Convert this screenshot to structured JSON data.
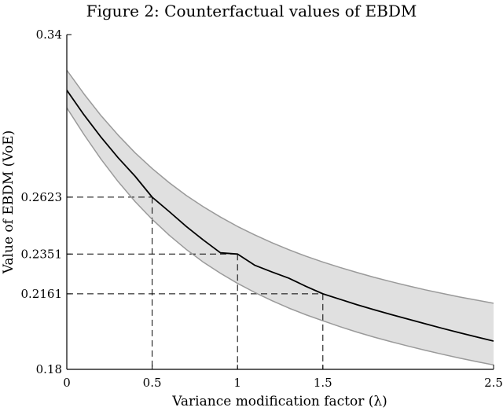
{
  "figure": {
    "title": "Figure 2: Counterfactual values of EBDM"
  },
  "chart_data": {
    "type": "line",
    "title": "Figure 2: Counterfactual values of EBDM",
    "xlabel": "Variance modification factor (λ)",
    "ylabel": "Value of EBDM (VoE)",
    "xlim": [
      0,
      2.5
    ],
    "ylim": [
      0.18,
      0.34
    ],
    "xticks": [
      "0",
      "0.5",
      "1",
      "1.5",
      "2.5"
    ],
    "yticks": [
      "0.18",
      "0.2161",
      "0.2351",
      "0.2623",
      "0.34"
    ],
    "grid": false,
    "series": [
      {
        "role": "estimate",
        "color": "#000000",
        "x": [
          0,
          0.1,
          0.2,
          0.3,
          0.4,
          0.5,
          0.6,
          0.7,
          0.8,
          0.9,
          1.0,
          1.1,
          1.2,
          1.3,
          1.4,
          1.5,
          1.6,
          1.7,
          1.8,
          1.9,
          2.0,
          2.1,
          2.2,
          2.3,
          2.4,
          2.5
        ],
        "values": [
          0.3134,
          0.3017,
          0.291,
          0.2812,
          0.2723,
          0.2623,
          0.2554,
          0.2483,
          0.2418,
          0.2357,
          0.2351,
          0.2298,
          0.2266,
          0.2236,
          0.2197,
          0.2161,
          0.2135,
          0.2109,
          0.2085,
          0.2062,
          0.204,
          0.2018,
          0.1996,
          0.1975,
          0.1955,
          0.1935
        ]
      },
      {
        "role": "upper-bound",
        "color": "#9a9a9a",
        "x": [
          0,
          0.1,
          0.2,
          0.3,
          0.4,
          0.5,
          0.6,
          0.7,
          0.8,
          0.9,
          1.0,
          1.1,
          1.2,
          1.3,
          1.4,
          1.5,
          1.6,
          1.7,
          1.8,
          1.9,
          2.0,
          2.1,
          2.2,
          2.3,
          2.4,
          2.5
        ],
        "values": [
          0.323,
          0.3117,
          0.3013,
          0.292,
          0.2835,
          0.276,
          0.2692,
          0.2631,
          0.2577,
          0.2528,
          0.2483,
          0.2443,
          0.2406,
          0.2372,
          0.2341,
          0.2313,
          0.2287,
          0.2263,
          0.224,
          0.2219,
          0.2199,
          0.218,
          0.2163,
          0.2146,
          0.2131,
          0.2116
        ]
      },
      {
        "role": "lower-bound",
        "color": "#9a9a9a",
        "x": [
          0,
          0.1,
          0.2,
          0.3,
          0.4,
          0.5,
          0.6,
          0.7,
          0.8,
          0.9,
          1.0,
          1.1,
          1.2,
          1.3,
          1.4,
          1.5,
          1.6,
          1.7,
          1.8,
          1.9,
          2.0,
          2.1,
          2.2,
          2.3,
          2.4,
          2.5
        ],
        "values": [
          0.305,
          0.2923,
          0.2805,
          0.2698,
          0.2602,
          0.2517,
          0.2441,
          0.2373,
          0.2312,
          0.2259,
          0.2211,
          0.2168,
          0.2129,
          0.2093,
          0.2061,
          0.2032,
          0.2004,
          0.1978,
          0.1954,
          0.1932,
          0.1911,
          0.1891,
          0.1872,
          0.1854,
          0.1837,
          0.1821
        ]
      }
    ],
    "reference_points": [
      {
        "x": 0.5,
        "y": 0.2623
      },
      {
        "x": 1,
        "y": 0.2351
      },
      {
        "x": 1.5,
        "y": 0.2161
      }
    ],
    "band_fill_color": "#e0e0e0"
  }
}
